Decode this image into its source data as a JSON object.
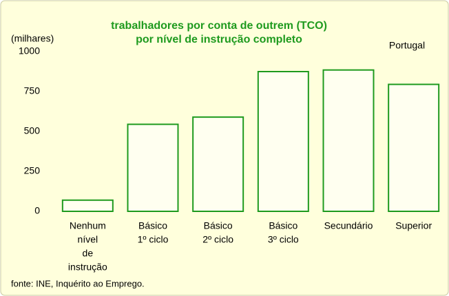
{
  "chart_data": {
    "type": "bar",
    "title": [
      "trabalhadores por conta de outrem (TCO)",
      "por nível de instrução completo"
    ],
    "y_axis_label": "(milhares)",
    "annotation": "Portugal",
    "source": "fonte: INE, Inquérito ao Emprego.",
    "categories": [
      [
        "Nenhum",
        "nível",
        "de",
        "instrução"
      ],
      [
        "Básico",
        "1º ciclo"
      ],
      [
        "Básico",
        "2º ciclo"
      ],
      [
        "Básico",
        "3º ciclo"
      ],
      [
        "Secundário"
      ],
      [
        "Superior"
      ]
    ],
    "values": [
      70,
      545,
      590,
      875,
      885,
      795
    ],
    "color": "#fffff0",
    "edge_color": "#1e9a1e",
    "ylim": [
      0,
      1000
    ],
    "yticks": [
      0,
      250,
      500,
      750,
      1000
    ],
    "grid": false
  }
}
